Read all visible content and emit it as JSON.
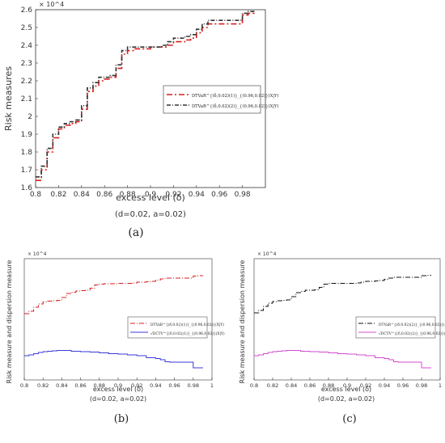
{
  "chart_data": [
    {
      "panel": "(a)",
      "type": "line",
      "xlabel": "excess level (δ)",
      "note": "(d=0.02, a=0.02)",
      "ylabel": "Risk measures",
      "exponent": "× 10^4",
      "x_ticks": [
        "0.8",
        "0.82",
        "0.84",
        "0.86",
        "0.88",
        "0.9",
        "0.92",
        "0.94",
        "0.96",
        "0.98"
      ],
      "y_ticks": [
        "1.6",
        "1.7",
        "1.8",
        "1.9",
        "2",
        "2.1",
        "2.2",
        "2.3",
        "2.4",
        "2.5",
        "2.6"
      ],
      "xlim": [
        0.8,
        1.0
      ],
      "ylim": [
        1.6,
        2.6
      ],
      "legend_position": "right-middle",
      "x": [
        0.8,
        0.805,
        0.81,
        0.815,
        0.82,
        0.825,
        0.83,
        0.835,
        0.84,
        0.845,
        0.85,
        0.855,
        0.86,
        0.865,
        0.87,
        0.875,
        0.88,
        0.885,
        0.89,
        0.895,
        0.9,
        0.905,
        0.91,
        0.915,
        0.92,
        0.925,
        0.93,
        0.935,
        0.94,
        0.945,
        0.95,
        0.955,
        0.96,
        0.965,
        0.97,
        0.975,
        0.98,
        0.985,
        0.99
      ],
      "series": [
        {
          "name": "DTVaR^{(δ,0.02)(1)}_{(0.96,0.02)}(X|Y)",
          "color": "#d42020",
          "dash": "7,3,2,3",
          "values": [
            1.64,
            1.7,
            1.8,
            1.88,
            1.93,
            1.95,
            1.96,
            1.97,
            2.04,
            2.14,
            2.17,
            2.2,
            2.21,
            2.22,
            2.27,
            2.35,
            2.37,
            2.38,
            2.38,
            2.38,
            2.39,
            2.39,
            2.39,
            2.4,
            2.42,
            2.42,
            2.43,
            2.44,
            2.47,
            2.5,
            2.52,
            2.52,
            2.52,
            2.52,
            2.52,
            2.52,
            2.57,
            2.58,
            2.59
          ]
        },
        {
          "name": "DTVaR^{(δ,0.02)(2)}_{(0.96,0.02)}(X|Y)",
          "color": "#333333",
          "dash": "5,2,1,2",
          "values": [
            1.66,
            1.72,
            1.82,
            1.9,
            1.94,
            1.96,
            1.97,
            1.98,
            2.06,
            2.16,
            2.19,
            2.22,
            2.22,
            2.23,
            2.29,
            2.37,
            2.39,
            2.39,
            2.39,
            2.39,
            2.39,
            2.39,
            2.4,
            2.42,
            2.44,
            2.44,
            2.45,
            2.46,
            2.49,
            2.52,
            2.54,
            2.54,
            2.54,
            2.54,
            2.54,
            2.54,
            2.58,
            2.59,
            2.6
          ]
        }
      ]
    },
    {
      "panel": "(b)",
      "type": "line",
      "xlabel": "excess level (δ)",
      "note": "(d=0.02, a=0.02)",
      "ylabel": "Risk measure and dispersion measure",
      "exponent": "× 10^4",
      "x_ticks": [
        "0.8",
        "0.82",
        "0.84",
        "0.86",
        "0.88",
        "0.9",
        "0.92",
        "0.94",
        "0.96",
        "0.98",
        "1"
      ],
      "xlim": [
        0.8,
        1.0
      ],
      "ylim": [
        0,
        3
      ],
      "legend_position": "right-middle",
      "x": [
        0.8,
        0.805,
        0.81,
        0.815,
        0.82,
        0.825,
        0.83,
        0.835,
        0.84,
        0.845,
        0.85,
        0.855,
        0.86,
        0.865,
        0.87,
        0.875,
        0.88,
        0.885,
        0.89,
        0.895,
        0.9,
        0.905,
        0.91,
        0.915,
        0.92,
        0.925,
        0.93,
        0.935,
        0.94,
        0.945,
        0.95,
        0.955,
        0.96,
        0.965,
        0.97,
        0.975,
        0.98,
        0.985,
        0.99
      ],
      "series": [
        {
          "name": "DTVaR^{(δ,0.02)(1)}_{(0.96,0.02)}(X|Y)",
          "color": "#d42020",
          "dash": "6,2,1,2",
          "values": [
            1.64,
            1.7,
            1.8,
            1.88,
            1.93,
            1.95,
            1.96,
            1.97,
            2.04,
            2.14,
            2.17,
            2.2,
            2.21,
            2.22,
            2.27,
            2.35,
            2.37,
            2.38,
            2.38,
            2.38,
            2.39,
            2.39,
            2.39,
            2.4,
            2.42,
            2.42,
            2.43,
            2.44,
            2.47,
            2.5,
            2.52,
            2.52,
            2.52,
            2.52,
            2.52,
            2.52,
            2.57,
            2.58,
            2.59
          ]
        },
        {
          "name": "√DCTV^{(δ,0.02)(1)}_{(0.96,0.02)}(X|Y)",
          "color": "#3a3ad8",
          "dash": "",
          "values": [
            0.6,
            0.62,
            0.65,
            0.68,
            0.7,
            0.71,
            0.72,
            0.73,
            0.73,
            0.73,
            0.71,
            0.71,
            0.7,
            0.7,
            0.69,
            0.69,
            0.67,
            0.67,
            0.65,
            0.65,
            0.64,
            0.64,
            0.62,
            0.62,
            0.6,
            0.6,
            0.55,
            0.55,
            0.53,
            0.5,
            0.45,
            0.44,
            0.44,
            0.44,
            0.44,
            0.44,
            0.3,
            0.3,
            0.29
          ]
        }
      ]
    },
    {
      "panel": "(c)",
      "type": "line",
      "xlabel": "excess level (δ)",
      "note": "(d=0.02, a=0.02)",
      "ylabel": "Risk measure and dispersion measure",
      "exponent": "× 10^4",
      "x_ticks": [
        "0.8",
        "0.82",
        "0.84",
        "0.86",
        "0.88",
        "0.9",
        "0.92",
        "0.94",
        "0.96",
        "0.98",
        "1"
      ],
      "xlim": [
        0.8,
        1.0
      ],
      "ylim": [
        0,
        3
      ],
      "legend_position": "right-middle",
      "x": [
        0.8,
        0.805,
        0.81,
        0.815,
        0.82,
        0.825,
        0.83,
        0.835,
        0.84,
        0.845,
        0.85,
        0.855,
        0.86,
        0.865,
        0.87,
        0.875,
        0.88,
        0.885,
        0.89,
        0.895,
        0.9,
        0.905,
        0.91,
        0.915,
        0.92,
        0.925,
        0.93,
        0.935,
        0.94,
        0.945,
        0.95,
        0.955,
        0.96,
        0.965,
        0.97,
        0.975,
        0.98,
        0.985,
        0.99
      ],
      "series": [
        {
          "name": "DTVaR^{(δ,0.02)(2)}_{(0.96,0.02)}(X|Y)",
          "color": "#111111",
          "dash": "6,2,1,2",
          "values": [
            1.66,
            1.72,
            1.82,
            1.9,
            1.94,
            1.96,
            1.97,
            1.98,
            2.06,
            2.16,
            2.19,
            2.22,
            2.22,
            2.23,
            2.29,
            2.37,
            2.39,
            2.39,
            2.39,
            2.39,
            2.39,
            2.39,
            2.4,
            2.42,
            2.44,
            2.44,
            2.45,
            2.46,
            2.49,
            2.52,
            2.54,
            2.54,
            2.54,
            2.54,
            2.54,
            2.54,
            2.58,
            2.59,
            2.6
          ]
        },
        {
          "name": "√DCTV^{(δ,0.02)(2)}_{(0.96,0.02)}(X|Y)",
          "color": "#d24cd2",
          "dash": "",
          "values": [
            0.6,
            0.62,
            0.65,
            0.68,
            0.7,
            0.71,
            0.72,
            0.73,
            0.73,
            0.73,
            0.71,
            0.71,
            0.7,
            0.7,
            0.69,
            0.69,
            0.67,
            0.67,
            0.65,
            0.65,
            0.64,
            0.64,
            0.62,
            0.62,
            0.6,
            0.6,
            0.55,
            0.55,
            0.53,
            0.5,
            0.45,
            0.44,
            0.44,
            0.44,
            0.44,
            0.44,
            0.3,
            0.3,
            0.29
          ]
        }
      ]
    }
  ]
}
